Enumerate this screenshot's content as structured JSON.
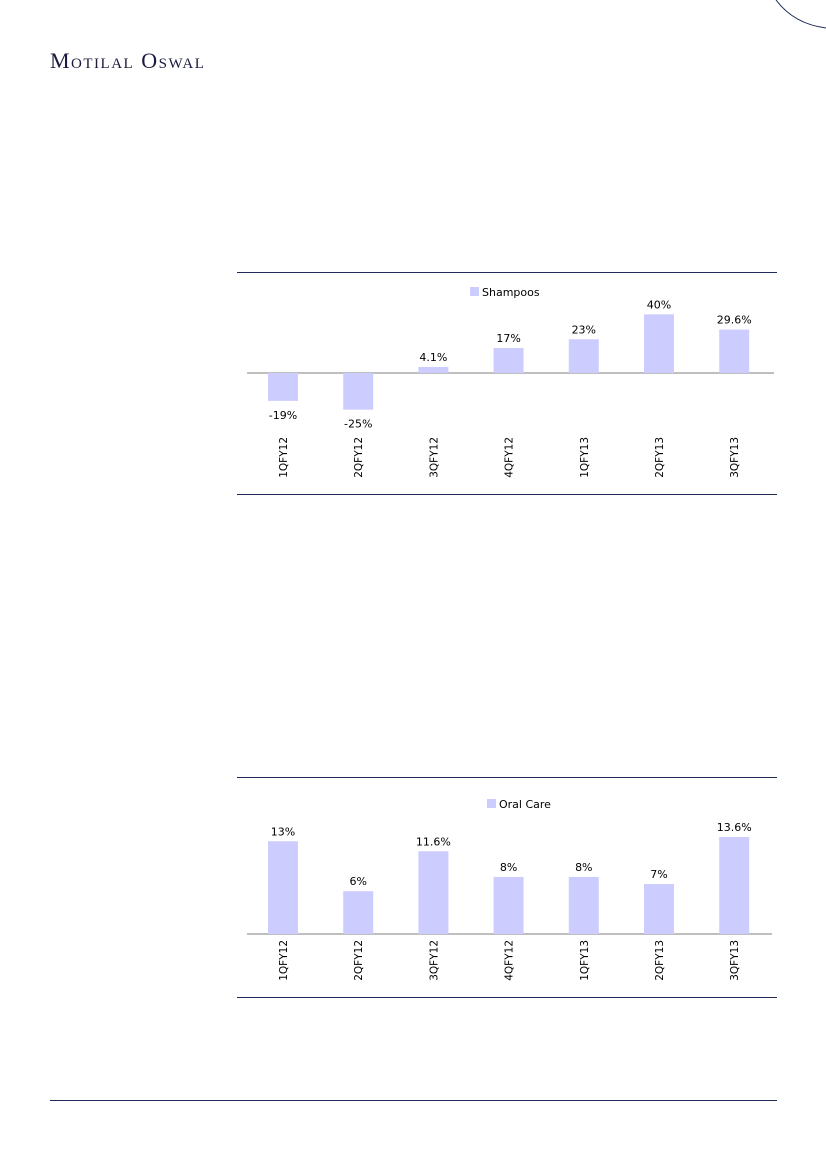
{
  "header": {
    "brand": "Motilal Oswal"
  },
  "chart_data": [
    {
      "type": "bar",
      "categories": [
        "1QFY12",
        "2QFY12",
        "3QFY12",
        "4QFY12",
        "1QFY13",
        "2QFY13",
        "3QFY13"
      ],
      "series": [
        {
          "name": "Shampoos",
          "values": [
            -19,
            -25,
            4.1,
            17,
            23,
            40,
            29.6
          ],
          "labels": [
            "-19%",
            "-25%",
            "4.1%",
            "17%",
            "23%",
            "40%",
            "29.6%"
          ]
        }
      ],
      "ylim": [
        -30,
        45
      ],
      "grid": false,
      "legend": "top-center",
      "colors": {
        "bar": "#ccccff",
        "axis": "#7f7f7f",
        "rule": "#1f2a5a"
      }
    },
    {
      "type": "bar",
      "categories": [
        "1QFY12",
        "2QFY12",
        "3QFY12",
        "4QFY12",
        "1QFY13",
        "2QFY13",
        "3QFY13"
      ],
      "series": [
        {
          "name": "Oral Care",
          "values": [
            13,
            6,
            11.6,
            8,
            8,
            7,
            13.6
          ],
          "labels": [
            "13%",
            "6%",
            "11.6%",
            "8%",
            "8%",
            "7%",
            "13.6%"
          ]
        }
      ],
      "ylim": [
        0,
        15
      ],
      "grid": false,
      "legend": "top-center",
      "colors": {
        "bar": "#ccccff",
        "axis": "#7f7f7f",
        "rule": "#1f2a5a"
      }
    }
  ]
}
